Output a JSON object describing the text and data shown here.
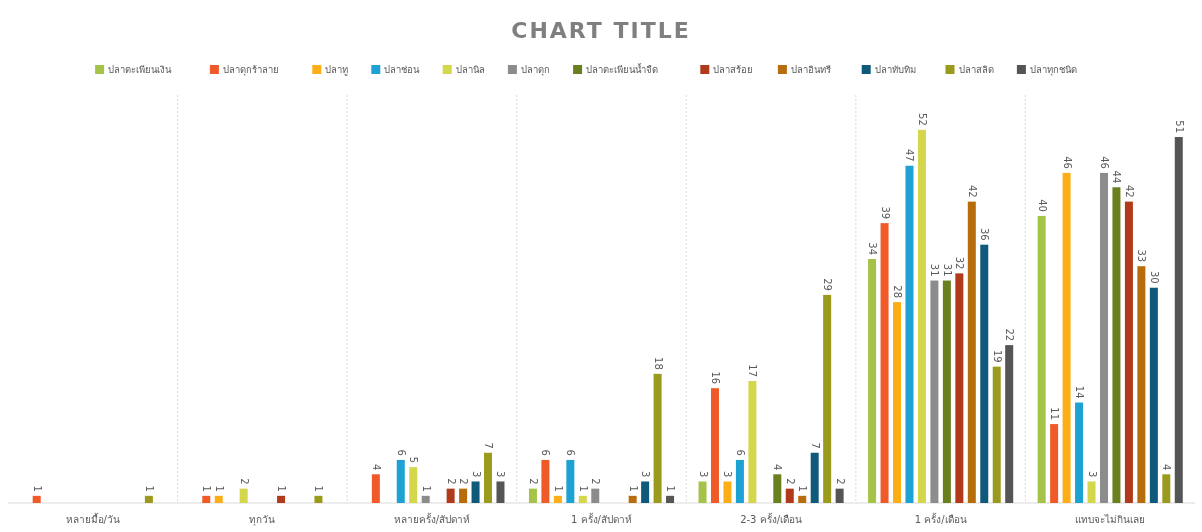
{
  "chart_data": {
    "type": "bar",
    "title": "CHART TITLE",
    "legend": "top",
    "data_labels": true,
    "categories": [
      "หลายมื้อ/วัน",
      "ทุกวัน",
      "หลายครั้ง/สัปดาห์",
      "1 ครั้ง/สัปดาห์",
      "2-3 ครั้ง/เดือน",
      "1 ครั้ง/เดือน",
      "แทบจะไม่กินเลย"
    ],
    "series": [
      {
        "name": "ปลาตะเพียนเงิน",
        "color": "#a5c249",
        "values": [
          null,
          null,
          null,
          2,
          3,
          34,
          40
        ]
      },
      {
        "name": "ปลาดุกร้าลาย",
        "color": "#f05a28",
        "values": [
          1,
          1,
          4,
          6,
          16,
          39,
          11
        ]
      },
      {
        "name": "ปลาทู",
        "color": "#fdae17",
        "values": [
          null,
          1,
          null,
          1,
          3,
          28,
          46
        ]
      },
      {
        "name": "ปลาช่อน",
        "color": "#1ea2d4",
        "values": [
          null,
          null,
          6,
          6,
          6,
          47,
          14
        ]
      },
      {
        "name": "ปลานิล",
        "color": "#d4d64b",
        "values": [
          null,
          2,
          5,
          1,
          17,
          52,
          3
        ]
      },
      {
        "name": "ปลาดุก",
        "color": "#8c8c8c",
        "values": [
          null,
          null,
          1,
          2,
          null,
          31,
          46
        ]
      },
      {
        "name": "ปลาตะเพียนน้ำจืด",
        "color": "#6a7f1e",
        "values": [
          null,
          null,
          null,
          null,
          4,
          31,
          44
        ]
      },
      {
        "name": "ปลาสร้อย",
        "color": "#b03a1a",
        "values": [
          null,
          1,
          2,
          null,
          2,
          32,
          42
        ]
      },
      {
        "name": "ปลาอินทรี",
        "color": "#b86d0c",
        "values": [
          null,
          null,
          2,
          1,
          1,
          42,
          33
        ]
      },
      {
        "name": "ปลาทับทิม",
        "color": "#0f5a7a",
        "values": [
          null,
          null,
          3,
          3,
          7,
          36,
          30
        ]
      },
      {
        "name": "ปลาสลิด",
        "color": "#9a9a1c",
        "values": [
          1,
          1,
          7,
          18,
          29,
          19,
          4
        ]
      },
      {
        "name": "ปลาทุกชนิด",
        "color": "#555555",
        "values": [
          null,
          null,
          3,
          1,
          2,
          22,
          51
        ]
      }
    ]
  }
}
